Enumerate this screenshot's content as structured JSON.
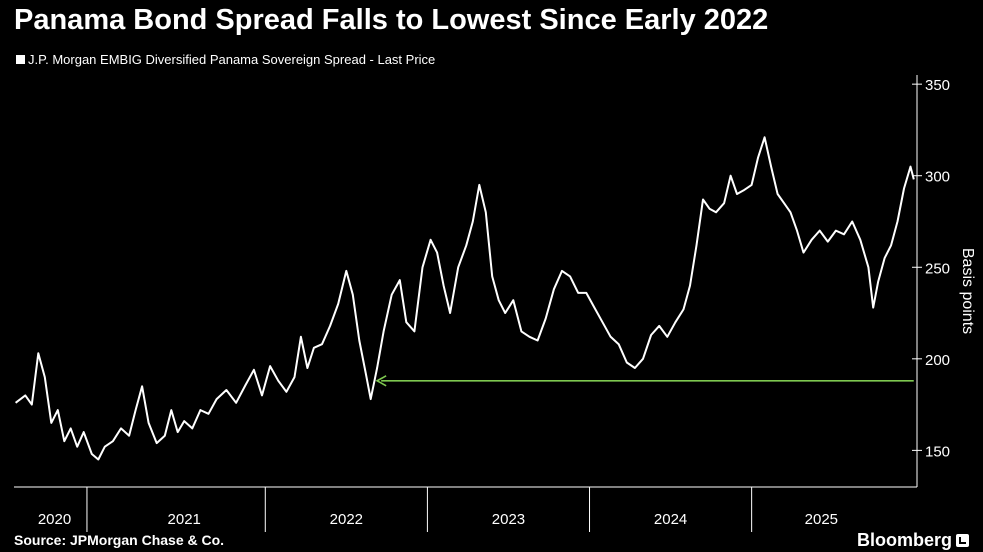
{
  "header": {
    "title": "Panama Bond Spread Falls to Lowest Since Early 2022"
  },
  "footer": {
    "source": "Source: JPMorgan Chase & Co.",
    "brand": "Bloomberg",
    "brand_icon": "bloomberg-logo-icon"
  },
  "colors": {
    "background": "#000000",
    "line": "#ffffff",
    "arrow": "#7ec850"
  },
  "chart_data": {
    "type": "line",
    "title": "Panama Bond Spread Falls to Lowest Since Early 2022",
    "legend_position": "top-left",
    "grid": false,
    "xlabel": "",
    "ylabel": "Basis points",
    "ylim": [
      130,
      355
    ],
    "xlim": [
      2019.95,
      2025.52
    ],
    "y_ticks": [
      150,
      200,
      250,
      300,
      350
    ],
    "x_year_labels": [
      {
        "label": "2020",
        "center": 2020.2
      },
      {
        "label": "2021",
        "center": 2021.0
      },
      {
        "label": "2022",
        "center": 2022.0
      },
      {
        "label": "2023",
        "center": 2023.0
      },
      {
        "label": "2024",
        "center": 2024.0
      },
      {
        "label": "2025",
        "center": 2024.93
      }
    ],
    "year_boundaries": [
      2020.4,
      2021.5,
      2022.5,
      2023.5,
      2024.5
    ],
    "series": [
      {
        "name": "J.P. Morgan EMBIG Diversified Panama Sovereign Spread - Last Price",
        "points": [
          [
            2019.96,
            176
          ],
          [
            2020.02,
            180
          ],
          [
            2020.06,
            175
          ],
          [
            2020.1,
            203
          ],
          [
            2020.14,
            190
          ],
          [
            2020.18,
            165
          ],
          [
            2020.22,
            172
          ],
          [
            2020.26,
            155
          ],
          [
            2020.3,
            162
          ],
          [
            2020.34,
            152
          ],
          [
            2020.38,
            160
          ],
          [
            2020.43,
            148
          ],
          [
            2020.47,
            145
          ],
          [
            2020.51,
            152
          ],
          [
            2020.56,
            155
          ],
          [
            2020.61,
            162
          ],
          [
            2020.66,
            158
          ],
          [
            2020.7,
            172
          ],
          [
            2020.74,
            185
          ],
          [
            2020.78,
            165
          ],
          [
            2020.83,
            154
          ],
          [
            2020.88,
            158
          ],
          [
            2020.92,
            172
          ],
          [
            2020.96,
            160
          ],
          [
            2021.0,
            166
          ],
          [
            2021.05,
            162
          ],
          [
            2021.1,
            172
          ],
          [
            2021.15,
            170
          ],
          [
            2021.2,
            178
          ],
          [
            2021.26,
            183
          ],
          [
            2021.32,
            176
          ],
          [
            2021.38,
            186
          ],
          [
            2021.43,
            194
          ],
          [
            2021.48,
            180
          ],
          [
            2021.53,
            196
          ],
          [
            2021.58,
            188
          ],
          [
            2021.63,
            182
          ],
          [
            2021.68,
            190
          ],
          [
            2021.72,
            212
          ],
          [
            2021.76,
            195
          ],
          [
            2021.8,
            206
          ],
          [
            2021.85,
            208
          ],
          [
            2021.9,
            218
          ],
          [
            2021.95,
            230
          ],
          [
            2022.0,
            248
          ],
          [
            2022.04,
            235
          ],
          [
            2022.08,
            210
          ],
          [
            2022.12,
            192
          ],
          [
            2022.15,
            178
          ],
          [
            2022.19,
            195
          ],
          [
            2022.23,
            215
          ],
          [
            2022.28,
            235
          ],
          [
            2022.33,
            243
          ],
          [
            2022.37,
            220
          ],
          [
            2022.42,
            215
          ],
          [
            2022.47,
            250
          ],
          [
            2022.52,
            265
          ],
          [
            2022.56,
            258
          ],
          [
            2022.6,
            240
          ],
          [
            2022.64,
            225
          ],
          [
            2022.69,
            250
          ],
          [
            2022.74,
            262
          ],
          [
            2022.78,
            275
          ],
          [
            2022.82,
            295
          ],
          [
            2022.86,
            280
          ],
          [
            2022.9,
            245
          ],
          [
            2022.94,
            232
          ],
          [
            2022.98,
            225
          ],
          [
            2023.03,
            232
          ],
          [
            2023.08,
            215
          ],
          [
            2023.13,
            212
          ],
          [
            2023.18,
            210
          ],
          [
            2023.23,
            222
          ],
          [
            2023.28,
            238
          ],
          [
            2023.33,
            248
          ],
          [
            2023.38,
            245
          ],
          [
            2023.43,
            236
          ],
          [
            2023.48,
            236
          ],
          [
            2023.53,
            228
          ],
          [
            2023.58,
            220
          ],
          [
            2023.63,
            212
          ],
          [
            2023.68,
            208
          ],
          [
            2023.73,
            198
          ],
          [
            2023.78,
            195
          ],
          [
            2023.83,
            200
          ],
          [
            2023.88,
            213
          ],
          [
            2023.93,
            218
          ],
          [
            2023.98,
            212
          ],
          [
            2024.03,
            220
          ],
          [
            2024.08,
            227
          ],
          [
            2024.12,
            240
          ],
          [
            2024.16,
            262
          ],
          [
            2024.2,
            287
          ],
          [
            2024.24,
            282
          ],
          [
            2024.28,
            280
          ],
          [
            2024.33,
            285
          ],
          [
            2024.37,
            300
          ],
          [
            2024.41,
            290
          ],
          [
            2024.45,
            292
          ],
          [
            2024.5,
            295
          ],
          [
            2024.54,
            310
          ],
          [
            2024.58,
            321
          ],
          [
            2024.62,
            305
          ],
          [
            2024.66,
            290
          ],
          [
            2024.7,
            285
          ],
          [
            2024.74,
            280
          ],
          [
            2024.78,
            270
          ],
          [
            2024.82,
            258
          ],
          [
            2024.87,
            265
          ],
          [
            2024.92,
            270
          ],
          [
            2024.97,
            264
          ],
          [
            2025.02,
            270
          ],
          [
            2025.07,
            268
          ],
          [
            2025.12,
            275
          ],
          [
            2025.17,
            265
          ],
          [
            2025.22,
            250
          ],
          [
            2025.25,
            228
          ],
          [
            2025.28,
            242
          ],
          [
            2025.32,
            255
          ],
          [
            2025.36,
            262
          ],
          [
            2025.4,
            275
          ],
          [
            2025.44,
            293
          ],
          [
            2025.48,
            305
          ],
          [
            2025.5,
            298
          ]
        ]
      }
    ],
    "annotation": {
      "type": "arrow",
      "from": [
        2025.5,
        188
      ],
      "to": [
        2022.19,
        188
      ]
    }
  }
}
